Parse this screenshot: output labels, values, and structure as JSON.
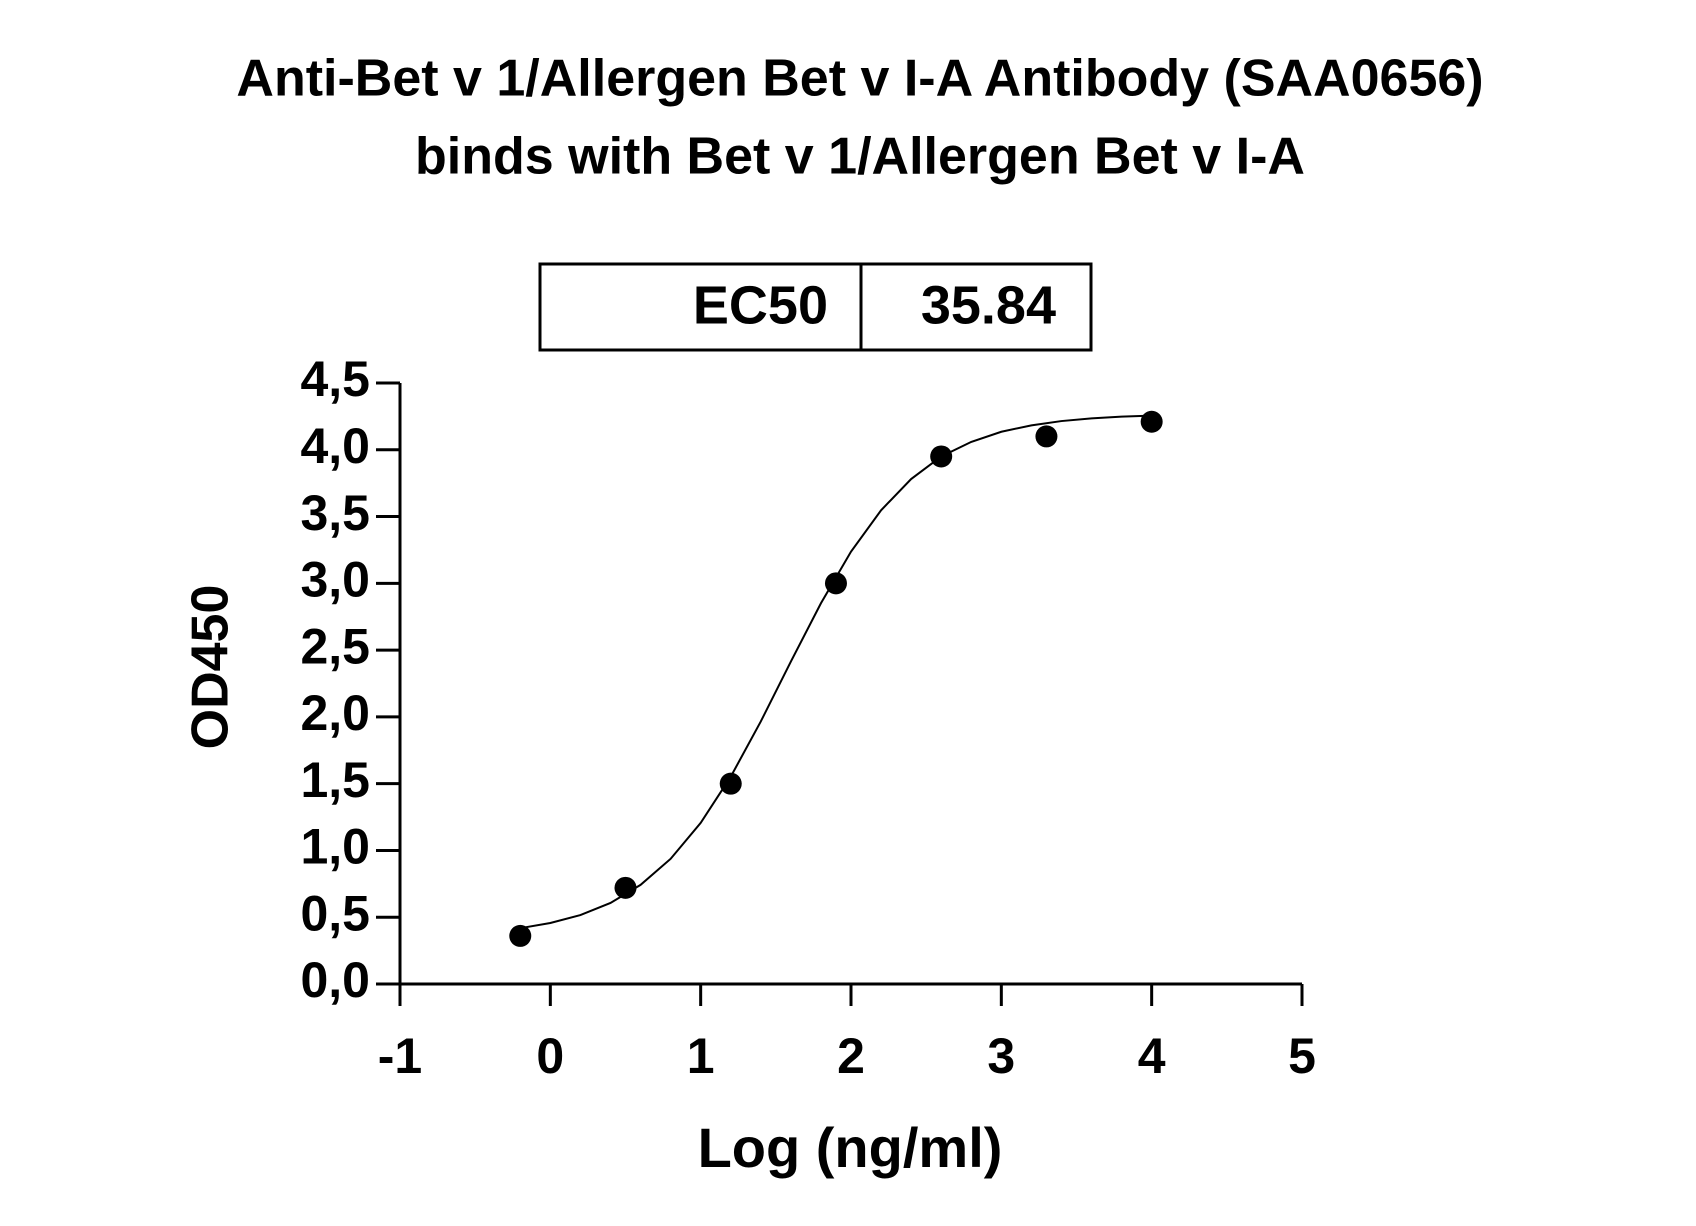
{
  "chart_data": {
    "type": "scatter",
    "title": [
      "Anti-Bet v 1/Allergen Bet v I-A Antibody (SAA0656)",
      "binds with Bet v 1/Allergen Bet v I-A"
    ],
    "x_label": "Log (ng/ml)",
    "y_label": "OD450",
    "ec50_table": {
      "label": "EC50",
      "value": 35.84
    },
    "color": "#000000",
    "x": [
      -0.2,
      0.5,
      1.2,
      1.9,
      2.6,
      3.3,
      4.0
    ],
    "values": [
      0.36,
      0.72,
      1.5,
      3.0,
      3.95,
      4.1,
      4.21
    ],
    "fit": {
      "x": [
        -0.2,
        0,
        0.2,
        0.4,
        0.6,
        0.8,
        1.0,
        1.2,
        1.4,
        1.6,
        1.8,
        2.0,
        2.2,
        2.4,
        2.6,
        2.8,
        3.0,
        3.2,
        3.4,
        3.6,
        3.8,
        4.0
      ],
      "values": [
        0.418,
        0.457,
        0.516,
        0.607,
        0.742,
        0.937,
        1.206,
        1.552,
        1.966,
        2.414,
        2.851,
        3.237,
        3.547,
        3.781,
        3.95,
        4.059,
        4.135,
        4.183,
        4.215,
        4.235,
        4.248,
        4.256
      ]
    },
    "xlim": [
      -1,
      5
    ],
    "xticks": [
      -1,
      0,
      1,
      2,
      3,
      4,
      5
    ],
    "ylim": [
      0,
      4.5
    ],
    "yticks": [
      {
        "value": 0,
        "label": "0,0"
      },
      {
        "value": 0.5,
        "label": "0,5"
      },
      {
        "value": 1,
        "label": "1,0"
      },
      {
        "value": 1.5,
        "label": "1,5"
      },
      {
        "value": 2,
        "label": "2,0"
      },
      {
        "value": 2.5,
        "label": "2,5"
      },
      {
        "value": 3,
        "label": "3,0"
      },
      {
        "value": 3.5,
        "label": "3,5"
      },
      {
        "value": 4,
        "label": "4,0"
      },
      {
        "value": 4.5,
        "label": "4,5"
      }
    ]
  }
}
